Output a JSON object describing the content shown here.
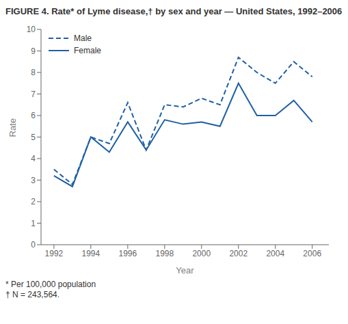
{
  "chart_data": {
    "type": "line",
    "title": "FIGURE 4. Rate* of Lyme disease,† by sex and year — United States, 1992–2006",
    "annotations": [
      "* Per 100,000 population",
      "† N = 243,564."
    ],
    "xlabel": "Year",
    "ylabel": "Rate",
    "x": [
      1992,
      1993,
      1994,
      1995,
      1996,
      1997,
      1998,
      1999,
      2000,
      2001,
      2002,
      2003,
      2004,
      2005,
      2006
    ],
    "series": [
      {
        "name": "Male",
        "color": "#1F5FA6",
        "line_style": "dashed",
        "values": [
          3.5,
          2.8,
          5.0,
          4.7,
          6.6,
          4.4,
          6.5,
          6.4,
          6.8,
          6.5,
          8.7,
          8.0,
          7.5,
          8.5,
          7.8
        ]
      },
      {
        "name": "Female",
        "color": "#1F5FA6",
        "line_style": "solid",
        "values": [
          3.2,
          2.7,
          5.0,
          4.3,
          5.7,
          4.4,
          5.8,
          5.6,
          5.7,
          5.5,
          7.5,
          6.0,
          6.0,
          6.7,
          5.7
        ]
      }
    ],
    "xlim": [
      1991.3,
      2006.9
    ],
    "xticks": [
      1992,
      1994,
      1996,
      1998,
      2000,
      2002,
      2004,
      2006
    ],
    "ylim": [
      0,
      10
    ],
    "yticks": [
      0,
      1,
      2,
      3,
      4,
      5,
      6,
      7,
      8,
      9,
      10
    ],
    "grid": false,
    "legend": "upper left"
  }
}
